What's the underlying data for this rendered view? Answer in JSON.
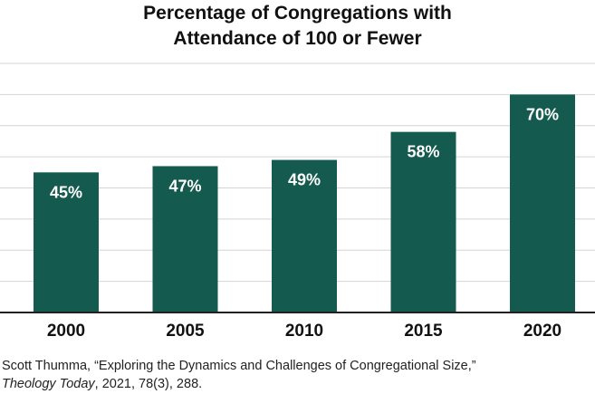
{
  "chart_data": {
    "type": "bar",
    "title_lines": [
      "Percentage of Congregations with",
      "Attendance of 100 or Fewer"
    ],
    "categories": [
      "2000",
      "2005",
      "2010",
      "2015",
      "2020"
    ],
    "values": [
      45,
      47,
      49,
      58,
      70
    ],
    "data_labels": [
      "45%",
      "47%",
      "49%",
      "58%",
      "70%"
    ],
    "xlabel": "",
    "ylabel": "",
    "ylim": [
      0,
      80
    ],
    "grid": true,
    "bar_color": "#155a4e"
  },
  "source": {
    "line1": "Scott Thumma, “Exploring the Dynamics and Challenges of Congregational Size,”",
    "journal": "Theology Today",
    "line2_rest": ", 2021, 78(3), 288."
  }
}
